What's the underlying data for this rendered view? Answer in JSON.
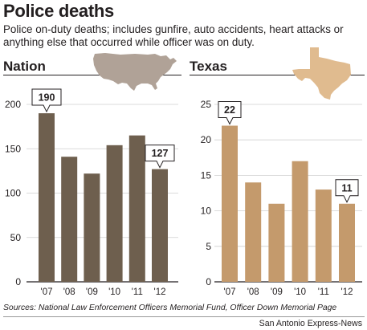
{
  "header": {
    "title": "Police deaths",
    "subtitle": "Police on-duty deaths; includes gunfire, auto accidents, heart attacks or anything else that occurred while officer was on duty."
  },
  "chart_data": [
    {
      "type": "bar",
      "title": "Nation",
      "categories": [
        "'07",
        "'08",
        "'09",
        "'10",
        "'11",
        "'12"
      ],
      "values": [
        190,
        141,
        122,
        154,
        165,
        127
      ],
      "ylim": [
        0,
        200
      ],
      "yticks": [
        0,
        50,
        100,
        150,
        200
      ],
      "bar_color": "#6e5f4e",
      "callouts": [
        {
          "index": 0,
          "label": "190"
        },
        {
          "index": 5,
          "label": "127"
        }
      ],
      "grid": true
    },
    {
      "type": "bar",
      "title": "Texas",
      "categories": [
        "'07",
        "'08",
        "'09",
        "'10",
        "'11",
        "'12"
      ],
      "values": [
        22,
        14,
        11,
        17,
        13,
        11
      ],
      "ylim": [
        0,
        25
      ],
      "yticks": [
        0,
        5,
        10,
        15,
        20,
        25
      ],
      "bar_color": "#c49a6c",
      "callouts": [
        {
          "index": 0,
          "label": "22"
        },
        {
          "index": 5,
          "label": "11"
        }
      ],
      "grid": true
    }
  ],
  "map_colors": {
    "nation": "#b0a297",
    "texas": "#e0bb8f"
  },
  "footer": {
    "source": "Sources: National Law Enforcement Officers Memorial Fund, Officer Down Memorial Page",
    "credit": "San Antonio Express-News"
  }
}
